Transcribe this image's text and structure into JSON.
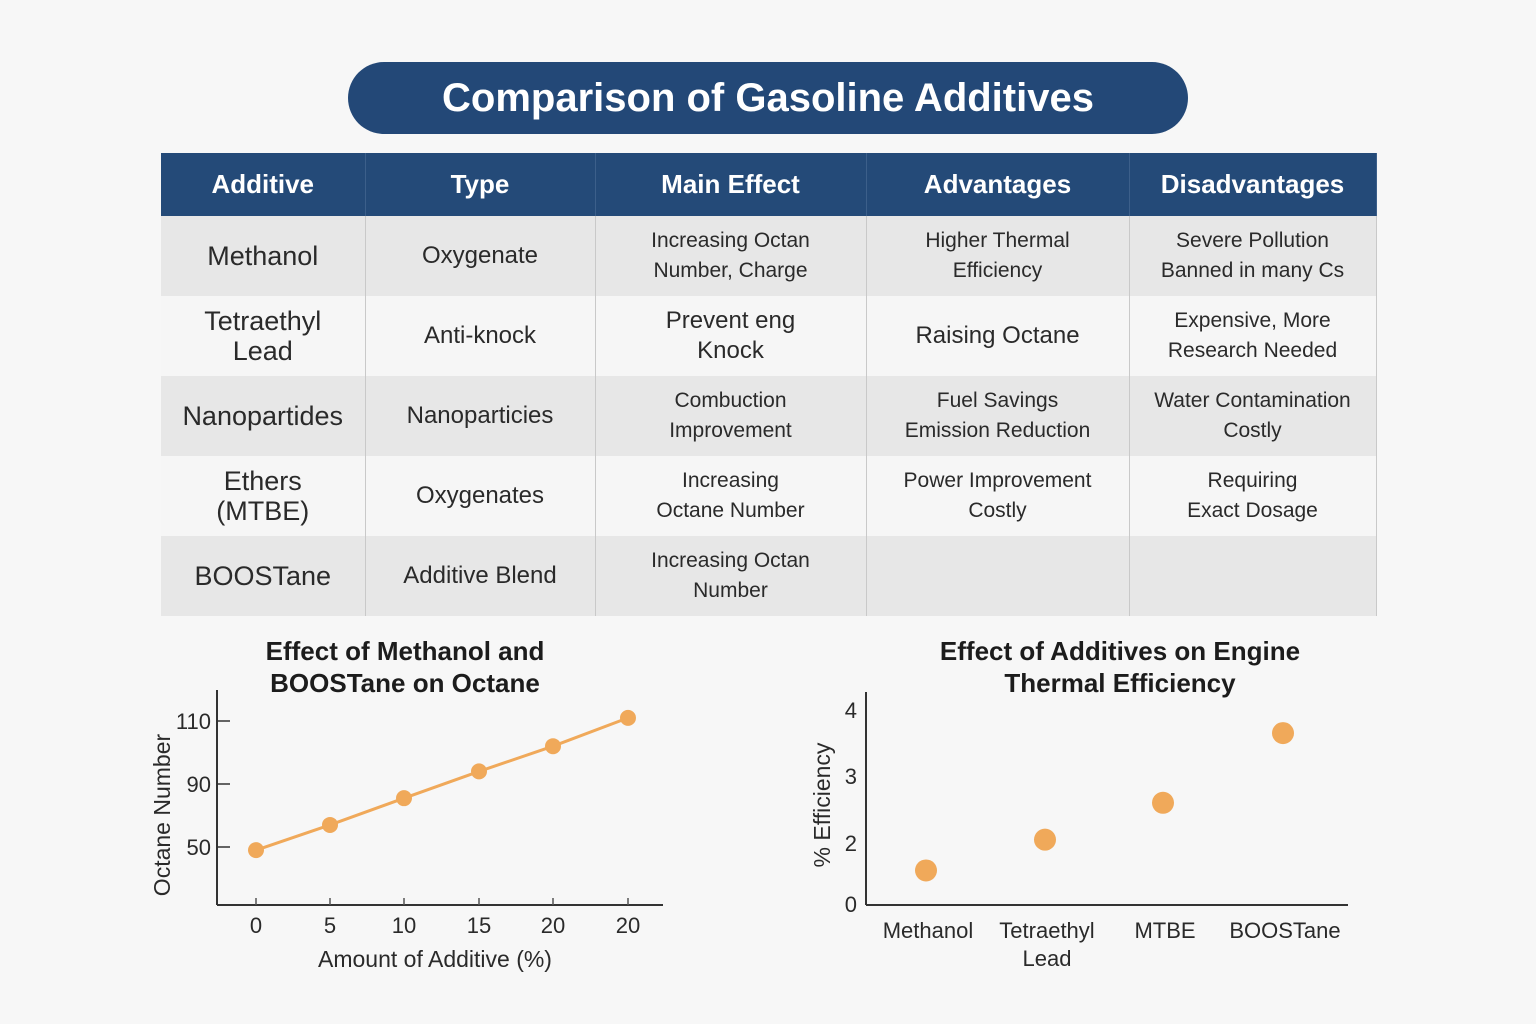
{
  "title": "Comparison of Gasoline Additives",
  "table": {
    "headers": [
      "Additive",
      "Type",
      "Main Effect",
      "Advantages",
      "Disadvantages"
    ],
    "rows": [
      [
        "Methanol",
        "Oxygenate",
        "Increasing Octan\nNumber, Charge",
        "Higher Thermal\nEfficiency",
        "Severe Pollution\nBanned in many Cs"
      ],
      [
        "Tetraethyl\nLead",
        "Anti-knock",
        "Prevent eng\nKnock",
        "Raising Octane",
        "Expensive, More\nResearch Needed"
      ],
      [
        "Nanopartides",
        "Nanoparticies",
        "Combuction\nImprovement",
        "Fuel Savings\nEmission Reduction",
        "Water Contamination\nCostly"
      ],
      [
        "Ethers\n(MTBE)",
        "Oxygenates",
        "Increasing\nOctane Number",
        "Power Improvement\nCostly",
        "Requiring\nExact Dosage"
      ],
      [
        "BOOSTane",
        "Additive Blend",
        "Increasing Octan\nNumber",
        "",
        ""
      ]
    ]
  },
  "chart_data": [
    {
      "type": "line",
      "title": "Effect of Methanol and BOOSTane on Octane",
      "title_lines": [
        "Effect of Methanol and",
        "BOOSTane on Octane"
      ],
      "xlabel": "Amount of Additive (%)",
      "ylabel": "Octane Number",
      "x_ticks": [
        "0",
        "5",
        "10",
        "15",
        "20",
        "20"
      ],
      "y_ticks": [
        50,
        90,
        110
      ],
      "values": [
        48,
        64,
        81,
        94,
        102,
        111
      ],
      "color": "#f0a95a",
      "grid": false
    },
    {
      "type": "scatter",
      "title": "Effect of Additives on Engine Thermal Efficiency",
      "title_lines": [
        "Effect of Additives on Engine",
        "Thermal Efficiency"
      ],
      "xlabel": "",
      "ylabel": "% Efficiency",
      "categories": [
        "Methanol",
        "Tetraethyl\nLead",
        "MTBE",
        "BOOSTane"
      ],
      "y_ticks": [
        0,
        2,
        3,
        4
      ],
      "values": [
        1.1,
        2.05,
        2.6,
        3.65
      ],
      "color": "#f0a95a",
      "grid": false
    }
  ]
}
